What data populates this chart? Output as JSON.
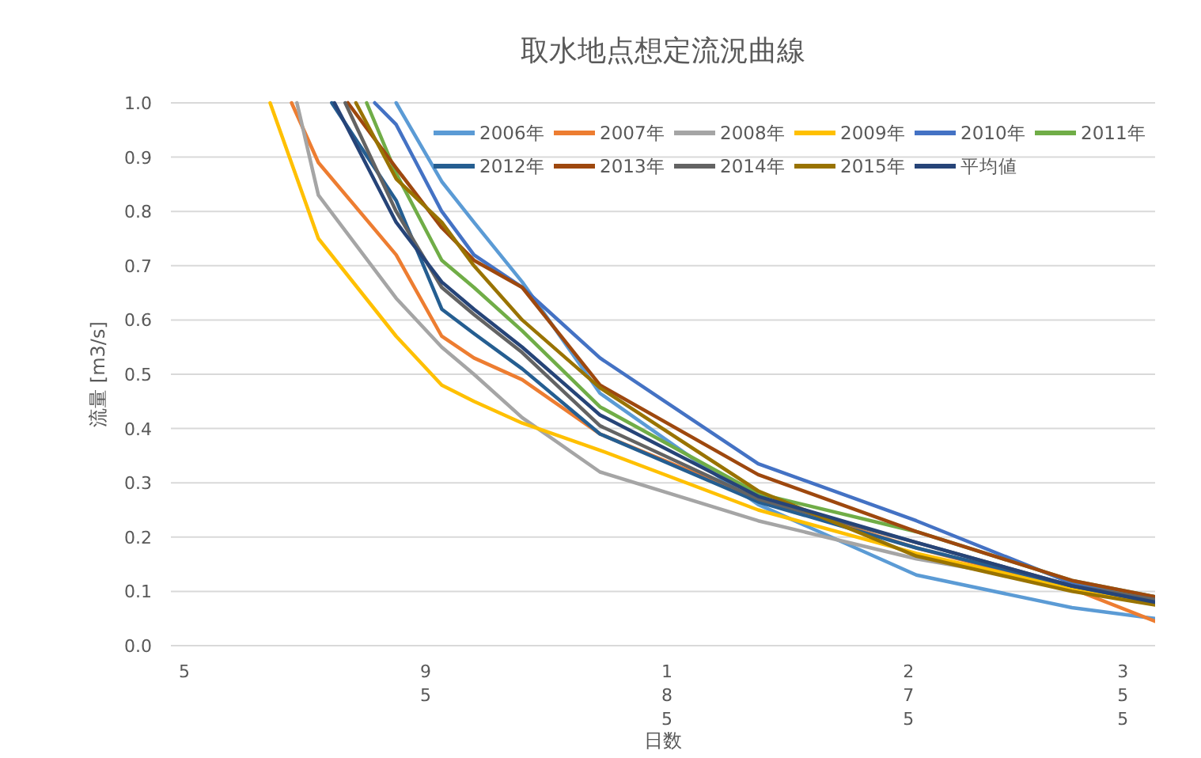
{
  "chart_data": {
    "type": "line",
    "title": "取水地点想定流況曲線",
    "xlabel": "日数",
    "ylabel": "流量 [m3/s]",
    "xlim": [
      0,
      367
    ],
    "xticks": [
      5,
      95,
      185,
      275,
      355
    ],
    "ylim": [
      0,
      1
    ],
    "yticks": [
      {
        "value": 0,
        "label": "0.0"
      },
      0.1,
      0.2,
      0.3,
      0.4,
      0.5,
      0.6,
      0.7,
      0.8,
      0.9,
      {
        "value": 1,
        "label": "1.0"
      }
    ],
    "grid": "y",
    "legend": "top right",
    "marker": "none",
    "line_style": "solid",
    "series": [
      {
        "name": "2006年",
        "color": "#5b9bd5",
        "x": [
          84,
          101,
          113,
          131,
          160,
          219,
          278,
          336,
          367
        ],
        "values": [
          1.0,
          0.855,
          0.78,
          0.67,
          0.465,
          0.26,
          0.13,
          0.07,
          0.05
        ]
      },
      {
        "name": "2007年",
        "color": "#ed7d31",
        "x": [
          45,
          55,
          84,
          101,
          113,
          131,
          160,
          219,
          278,
          336,
          367
        ],
        "values": [
          1.0,
          0.89,
          0.72,
          0.57,
          0.53,
          0.49,
          0.39,
          0.27,
          0.18,
          0.105,
          0.045
        ]
      },
      {
        "name": "2008年",
        "color": "#a5a5a5",
        "x": [
          47,
          55,
          84,
          101,
          113,
          131,
          160,
          219,
          278,
          336
        ],
        "values": [
          1.0,
          0.83,
          0.64,
          0.55,
          0.5,
          0.42,
          0.32,
          0.23,
          0.16,
          0.11
        ]
      },
      {
        "name": "2009年",
        "color": "#ffc000",
        "x": [
          37,
          55,
          84,
          101,
          113,
          131,
          160,
          219,
          278,
          336,
          367
        ],
        "values": [
          1.0,
          0.75,
          0.57,
          0.48,
          0.45,
          0.41,
          0.36,
          0.25,
          0.17,
          0.105,
          0.08
        ]
      },
      {
        "name": "2010年",
        "color": "#4472c4",
        "x": [
          76,
          84,
          101,
          113,
          131,
          160,
          219,
          278,
          336,
          367
        ],
        "values": [
          1.0,
          0.96,
          0.8,
          0.72,
          0.66,
          0.53,
          0.335,
          0.23,
          0.115,
          0.09
        ]
      },
      {
        "name": "2011年",
        "color": "#70ad47",
        "x": [
          73,
          84,
          101,
          113,
          131,
          160,
          219,
          278,
          336,
          367
        ],
        "values": [
          1.0,
          0.87,
          0.71,
          0.66,
          0.58,
          0.44,
          0.28,
          0.21,
          0.12,
          0.09
        ]
      },
      {
        "name": "2012年",
        "color": "#255e91",
        "x": [
          60,
          84,
          101,
          113,
          131,
          160,
          219,
          278,
          336,
          367
        ],
        "values": [
          1.0,
          0.82,
          0.62,
          0.575,
          0.51,
          0.39,
          0.265,
          0.18,
          0.11,
          0.08
        ]
      },
      {
        "name": "2013年",
        "color": "#9e480e",
        "x": [
          66,
          84,
          101,
          113,
          131,
          160,
          219,
          278,
          336,
          367
        ],
        "values": [
          1.0,
          0.88,
          0.77,
          0.71,
          0.66,
          0.48,
          0.315,
          0.21,
          0.12,
          0.09
        ]
      },
      {
        "name": "2014年",
        "color": "#636363",
        "x": [
          65,
          84,
          101,
          113,
          131,
          160,
          219,
          278,
          336,
          367
        ],
        "values": [
          1.0,
          0.8,
          0.66,
          0.61,
          0.54,
          0.405,
          0.27,
          0.19,
          0.11,
          0.085
        ]
      },
      {
        "name": "2015年",
        "color": "#997300",
        "x": [
          69,
          84,
          101,
          113,
          131,
          160,
          219,
          278,
          336,
          367
        ],
        "values": [
          1.0,
          0.86,
          0.78,
          0.7,
          0.6,
          0.475,
          0.285,
          0.165,
          0.1,
          0.075
        ]
      },
      {
        "name": "平均値",
        "color": "#264478",
        "x": [
          61,
          84,
          101,
          113,
          131,
          160,
          219,
          278,
          336,
          367
        ],
        "values": [
          1.0,
          0.78,
          0.67,
          0.62,
          0.55,
          0.425,
          0.275,
          0.19,
          0.11,
          0.08
        ]
      }
    ]
  }
}
